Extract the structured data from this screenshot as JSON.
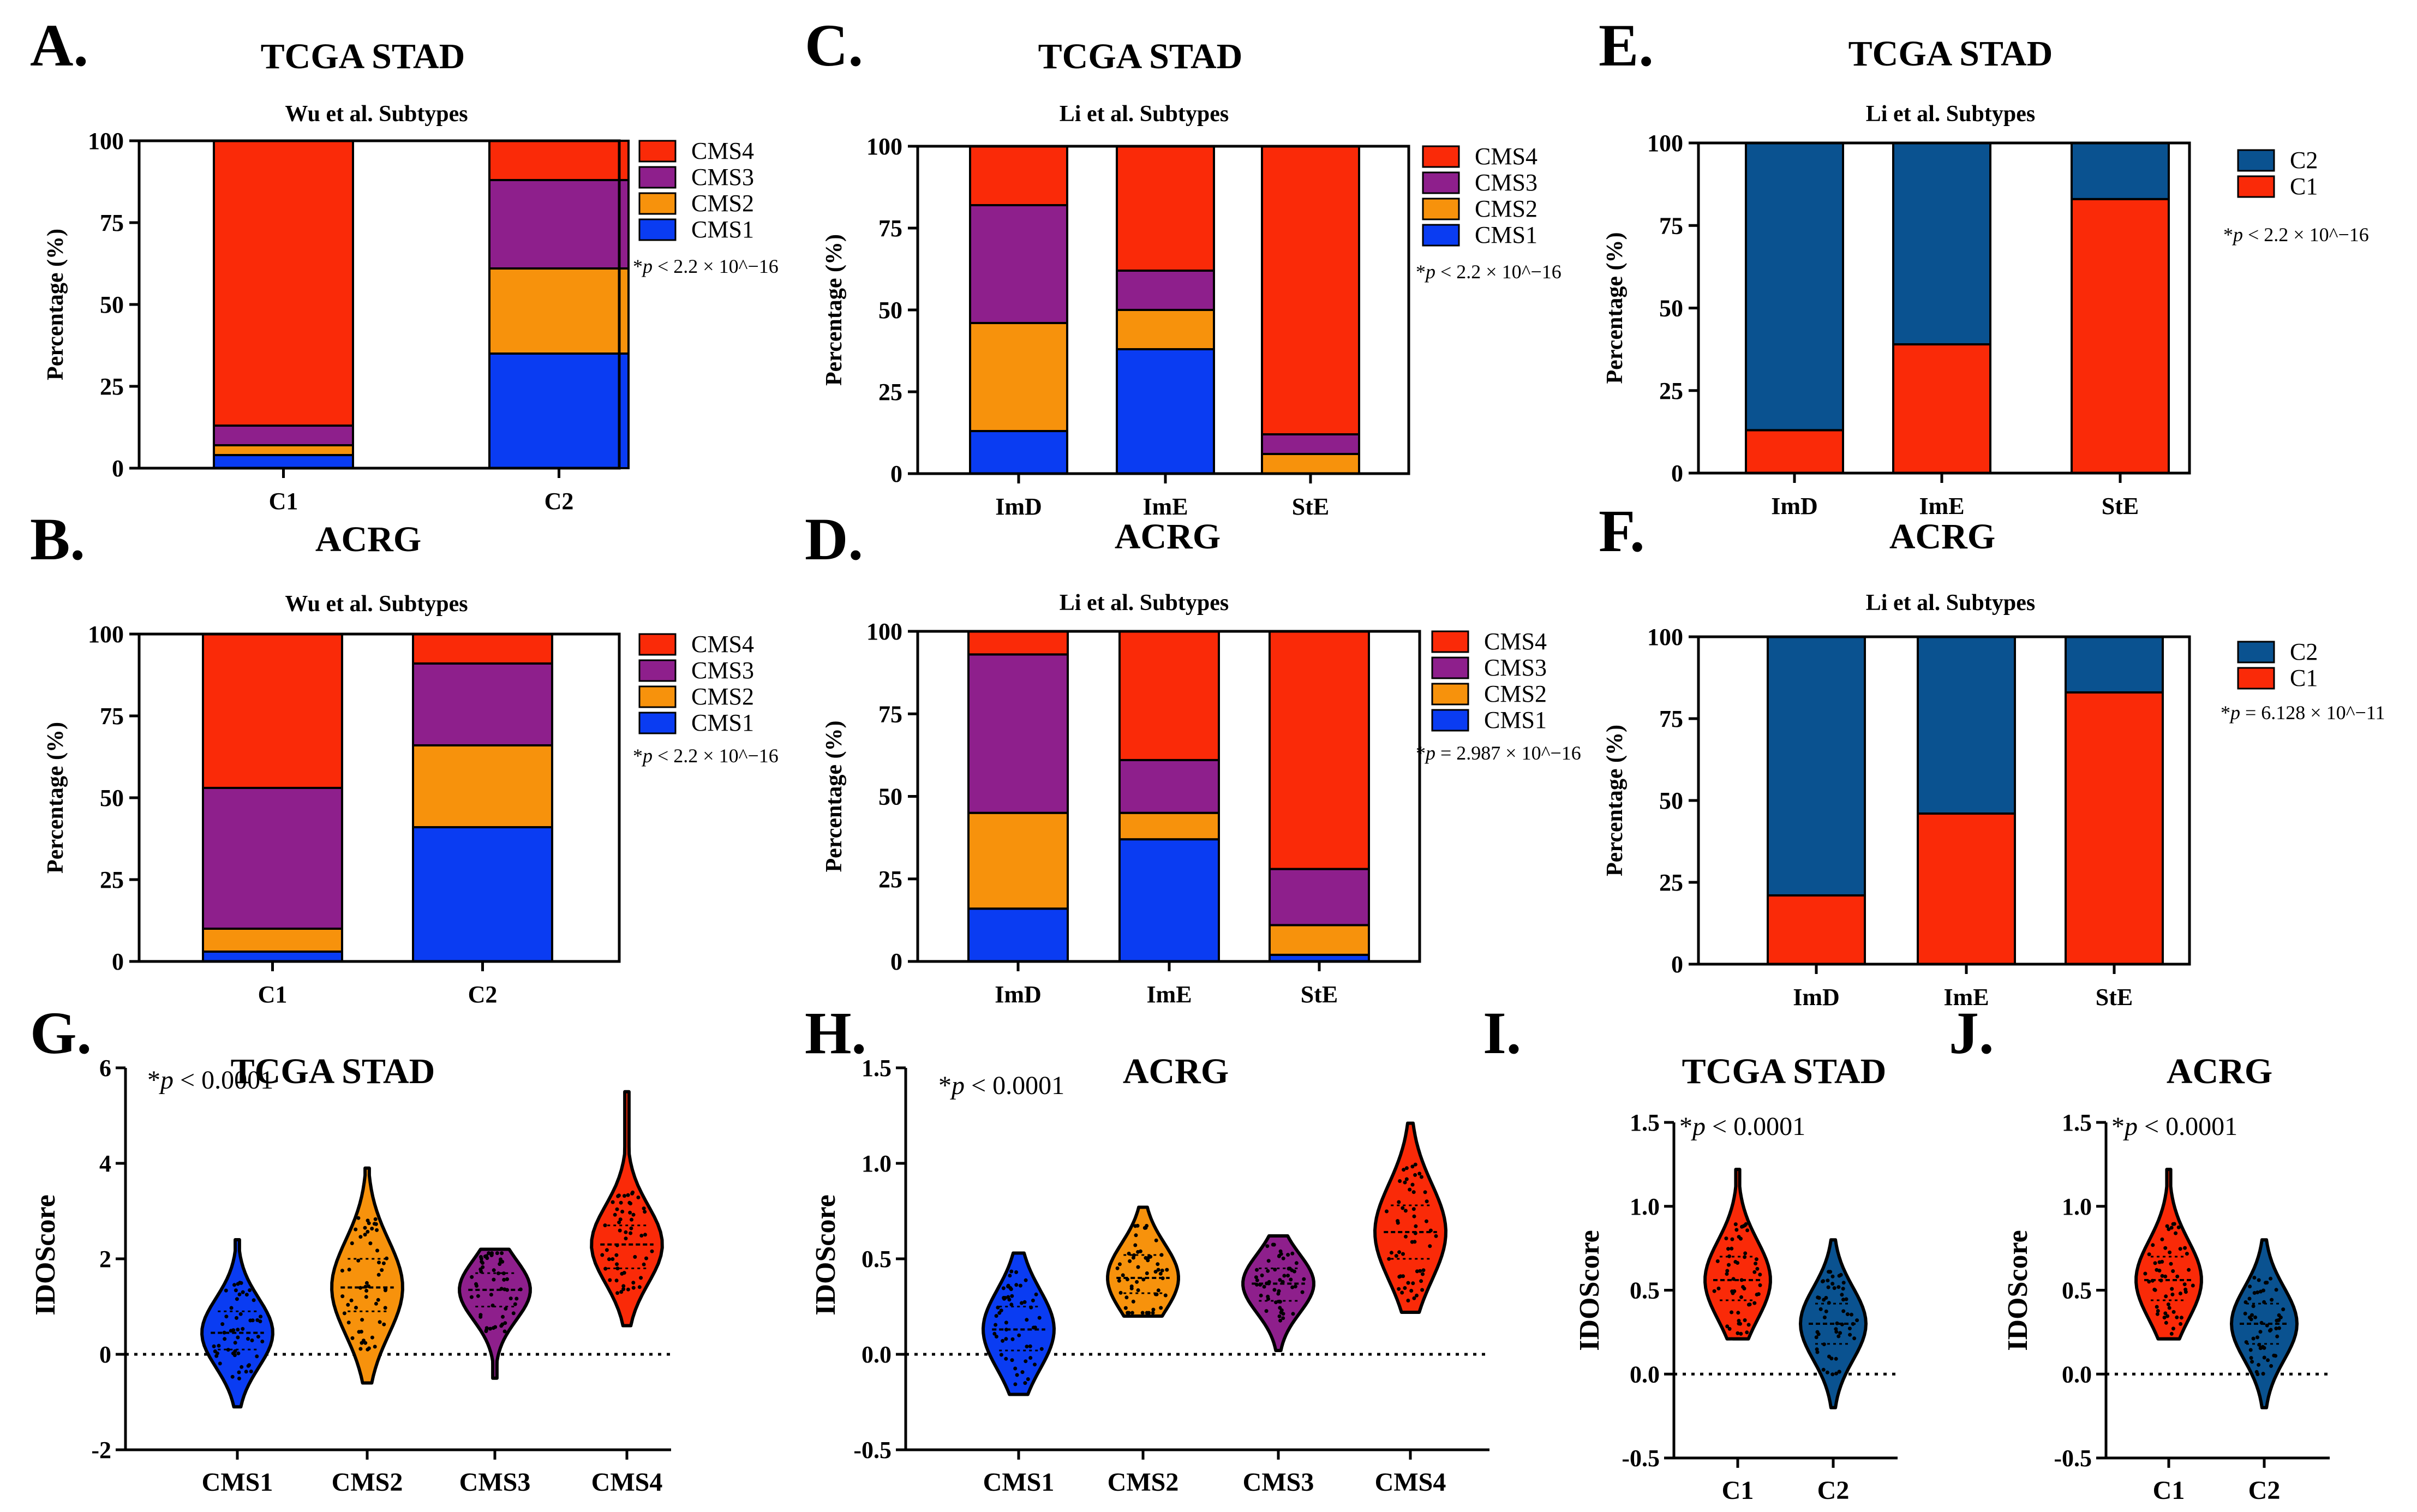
{
  "colors": {
    "CMS1": "#0a3cf2",
    "CMS2": "#f7920c",
    "CMS3": "#8e1f8c",
    "CMS4": "#fa2a08",
    "C1": "#fa2a08",
    "C2": "#0a5290",
    "axis": "#000000"
  },
  "chart_data": [
    {
      "panel": "A.",
      "type": "bar",
      "stacked": true,
      "cohort_title": "TCGA STAD",
      "title": "Wu et al. Subtypes",
      "ylabel": "Percentage (%)",
      "ylim": [
        0,
        100
      ],
      "yticks": [
        0,
        25,
        50,
        75,
        100
      ],
      "categories": [
        "C1",
        "C2"
      ],
      "series": [
        {
          "name": "CMS1",
          "values": [
            4,
            35
          ]
        },
        {
          "name": "CMS2",
          "values": [
            3,
            26
          ]
        },
        {
          "name": "CMS3",
          "values": [
            6,
            27
          ]
        },
        {
          "name": "CMS4",
          "values": [
            87,
            12
          ]
        }
      ],
      "legend": [
        "CMS4",
        "CMS3",
        "CMS2",
        "CMS1"
      ],
      "pvalue": {
        "lead": "*",
        "p": "p",
        "rest": " < 2.2 × 10^−16"
      }
    },
    {
      "panel": "B.",
      "type": "bar",
      "stacked": true,
      "cohort_title": "ACRG",
      "title": "Wu et al. Subtypes",
      "ylabel": "Percentage (%)",
      "ylim": [
        0,
        100
      ],
      "yticks": [
        0,
        25,
        50,
        75,
        100
      ],
      "categories": [
        "C1",
        "C2"
      ],
      "series": [
        {
          "name": "CMS1",
          "values": [
            3,
            41
          ]
        },
        {
          "name": "CMS2",
          "values": [
            7,
            25
          ]
        },
        {
          "name": "CMS3",
          "values": [
            43,
            25
          ]
        },
        {
          "name": "CMS4",
          "values": [
            47,
            9
          ]
        }
      ],
      "legend": [
        "CMS4",
        "CMS3",
        "CMS2",
        "CMS1"
      ],
      "pvalue": {
        "lead": "*",
        "p": "p",
        "rest": " < 2.2 × 10^−16"
      }
    },
    {
      "panel": "C.",
      "type": "bar",
      "stacked": true,
      "cohort_title": "TCGA STAD",
      "title": "Li et al. Subtypes",
      "ylabel": "Percentage (%)",
      "ylim": [
        0,
        100
      ],
      "yticks": [
        0,
        25,
        50,
        75,
        100
      ],
      "categories": [
        "ImD",
        "ImE",
        "StE"
      ],
      "series": [
        {
          "name": "CMS1",
          "values": [
            13,
            38,
            0
          ]
        },
        {
          "name": "CMS2",
          "values": [
            33,
            12,
            6
          ]
        },
        {
          "name": "CMS3",
          "values": [
            36,
            12,
            6
          ]
        },
        {
          "name": "CMS4",
          "values": [
            18,
            38,
            88
          ]
        }
      ],
      "legend": [
        "CMS4",
        "CMS3",
        "CMS2",
        "CMS1"
      ],
      "pvalue": {
        "lead": "*",
        "p": "p",
        "rest": " < 2.2 × 10^−16"
      }
    },
    {
      "panel": "D.",
      "type": "bar",
      "stacked": true,
      "cohort_title": "ACRG",
      "title": "Li et al. Subtypes",
      "ylabel": "Percentage (%)",
      "ylim": [
        0,
        100
      ],
      "yticks": [
        0,
        25,
        50,
        75,
        100
      ],
      "categories": [
        "ImD",
        "ImE",
        "StE"
      ],
      "series": [
        {
          "name": "CMS1",
          "values": [
            16,
            37,
            2
          ]
        },
        {
          "name": "CMS2",
          "values": [
            29,
            8,
            9
          ]
        },
        {
          "name": "CMS3",
          "values": [
            48,
            16,
            17
          ]
        },
        {
          "name": "CMS4",
          "values": [
            7,
            39,
            72
          ]
        }
      ],
      "legend": [
        "CMS4",
        "CMS3",
        "CMS2",
        "CMS1"
      ],
      "pvalue": {
        "lead": "*",
        "p": "p",
        "rest": " = 2.987 × 10^−16"
      }
    },
    {
      "panel": "E.",
      "type": "bar",
      "stacked": true,
      "cohort_title": "TCGA STAD",
      "title": "Li et al. Subtypes",
      "ylabel": "Percentage (%)",
      "ylim": [
        0,
        100
      ],
      "yticks": [
        0,
        25,
        50,
        75,
        100
      ],
      "categories": [
        "ImD",
        "ImE",
        "StE"
      ],
      "series": [
        {
          "name": "C1",
          "values": [
            13,
            39,
            83
          ]
        },
        {
          "name": "C2",
          "values": [
            87,
            61,
            17
          ]
        }
      ],
      "legend": [
        "C2",
        "C1"
      ],
      "pvalue": {
        "lead": "*",
        "p": "p",
        "rest": " < 2.2 × 10^−16"
      }
    },
    {
      "panel": "F.",
      "type": "bar",
      "stacked": true,
      "cohort_title": "ACRG",
      "title": "Li et al. Subtypes",
      "ylabel": "Percentage (%)",
      "ylim": [
        0,
        100
      ],
      "yticks": [
        0,
        25,
        50,
        75,
        100
      ],
      "categories": [
        "ImD",
        "ImE",
        "StE"
      ],
      "series": [
        {
          "name": "C1",
          "values": [
            21,
            46,
            83
          ]
        },
        {
          "name": "C2",
          "values": [
            79,
            54,
            17
          ]
        }
      ],
      "legend": [
        "C2",
        "C1"
      ],
      "pvalue": {
        "lead": "*",
        "p": "p",
        "rest": " = 6.128 × 10^−11"
      }
    },
    {
      "panel": "G.",
      "type": "violin",
      "cohort_title": "TCGA STAD",
      "ylabel": "IDOScore",
      "ylim": [
        -2,
        6
      ],
      "yticks": [
        -2,
        0,
        2,
        4,
        6
      ],
      "tick_labels": [
        "-2",
        "0",
        "2",
        "4",
        "6"
      ],
      "categories": [
        "CMS1",
        "CMS2",
        "CMS3",
        "CMS4"
      ],
      "groups": [
        {
          "name": "CMS1",
          "min": -1.1,
          "max": 2.4,
          "median": 0.45,
          "q1": 0.1,
          "q3": 0.9,
          "color_key": "CMS1"
        },
        {
          "name": "CMS2",
          "min": -0.6,
          "max": 3.9,
          "median": 1.4,
          "q1": 0.9,
          "q3": 2.0,
          "color_key": "CMS2"
        },
        {
          "name": "CMS3",
          "min": -0.5,
          "max": 2.2,
          "median": 1.35,
          "q1": 1.0,
          "q3": 1.7,
          "color_key": "CMS3"
        },
        {
          "name": "CMS4",
          "min": 0.6,
          "max": 5.5,
          "median": 2.3,
          "q1": 1.8,
          "q3": 2.7,
          "color_key": "CMS4"
        }
      ],
      "pvalue": {
        "lead": "*",
        "p": "p",
        "rest": " < 0.0001"
      }
    },
    {
      "panel": "H.",
      "type": "violin",
      "cohort_title": "ACRG",
      "ylabel": "IDOScore",
      "ylim": [
        -0.5,
        1.5
      ],
      "yticks": [
        -0.5,
        0,
        0.5,
        1.0,
        1.5
      ],
      "tick_labels": [
        "-0.5",
        "0.0",
        "0.5",
        "1.0",
        "1.5"
      ],
      "categories": [
        "CMS1",
        "CMS2",
        "CMS3",
        "CMS4"
      ],
      "groups": [
        {
          "name": "CMS1",
          "min": -0.21,
          "max": 0.53,
          "median": 0.13,
          "q1": 0.02,
          "q3": 0.25,
          "color_key": "CMS1"
        },
        {
          "name": "CMS2",
          "min": 0.2,
          "max": 0.77,
          "median": 0.4,
          "q1": 0.32,
          "q3": 0.52,
          "color_key": "CMS2"
        },
        {
          "name": "CMS3",
          "min": 0.02,
          "max": 0.62,
          "median": 0.37,
          "q1": 0.28,
          "q3": 0.45,
          "color_key": "CMS3"
        },
        {
          "name": "CMS4",
          "min": 0.22,
          "max": 1.21,
          "median": 0.64,
          "q1": 0.5,
          "q3": 0.78,
          "color_key": "CMS4"
        }
      ],
      "pvalue": {
        "lead": "*",
        "p": "p",
        "rest": " < 0.0001"
      }
    },
    {
      "panel": "I.",
      "type": "violin",
      "cohort_title": "TCGA STAD",
      "ylabel": "IDOScore",
      "ylim": [
        -0.5,
        1.5
      ],
      "yticks": [
        -0.5,
        0,
        0.5,
        1.0,
        1.5
      ],
      "tick_labels": [
        "-0.5",
        "0.0",
        "0.5",
        "1.0",
        "1.5"
      ],
      "categories": [
        "C1",
        "C2"
      ],
      "groups": [
        {
          "name": "C1",
          "min": 0.21,
          "max": 1.22,
          "median": 0.56,
          "q1": 0.44,
          "q3": 0.7,
          "color_key": "C1"
        },
        {
          "name": "C2",
          "min": -0.2,
          "max": 0.8,
          "median": 0.3,
          "q1": 0.18,
          "q3": 0.42,
          "color_key": "C2"
        }
      ],
      "pvalue": {
        "lead": "*",
        "p": "p",
        "rest": " < 0.0001"
      }
    },
    {
      "panel": "J.",
      "type": "violin",
      "cohort_title": "ACRG",
      "ylabel": "IDOScore",
      "ylim": [
        -0.5,
        1.5
      ],
      "yticks": [
        -0.5,
        0,
        0.5,
        1.0,
        1.5
      ],
      "tick_labels": [
        "-0.5",
        "0.0",
        "0.5",
        "1.0",
        "1.5"
      ],
      "categories": [
        "C1",
        "C2"
      ],
      "groups": [
        {
          "name": "C1",
          "min": 0.21,
          "max": 1.22,
          "median": 0.56,
          "q1": 0.44,
          "q3": 0.7,
          "color_key": "C1"
        },
        {
          "name": "C2",
          "min": -0.2,
          "max": 0.8,
          "median": 0.3,
          "q1": 0.18,
          "q3": 0.42,
          "color_key": "C2"
        }
      ],
      "pvalue": {
        "lead": "*",
        "p": "p",
        "rest": " < 0.0001"
      }
    }
  ]
}
